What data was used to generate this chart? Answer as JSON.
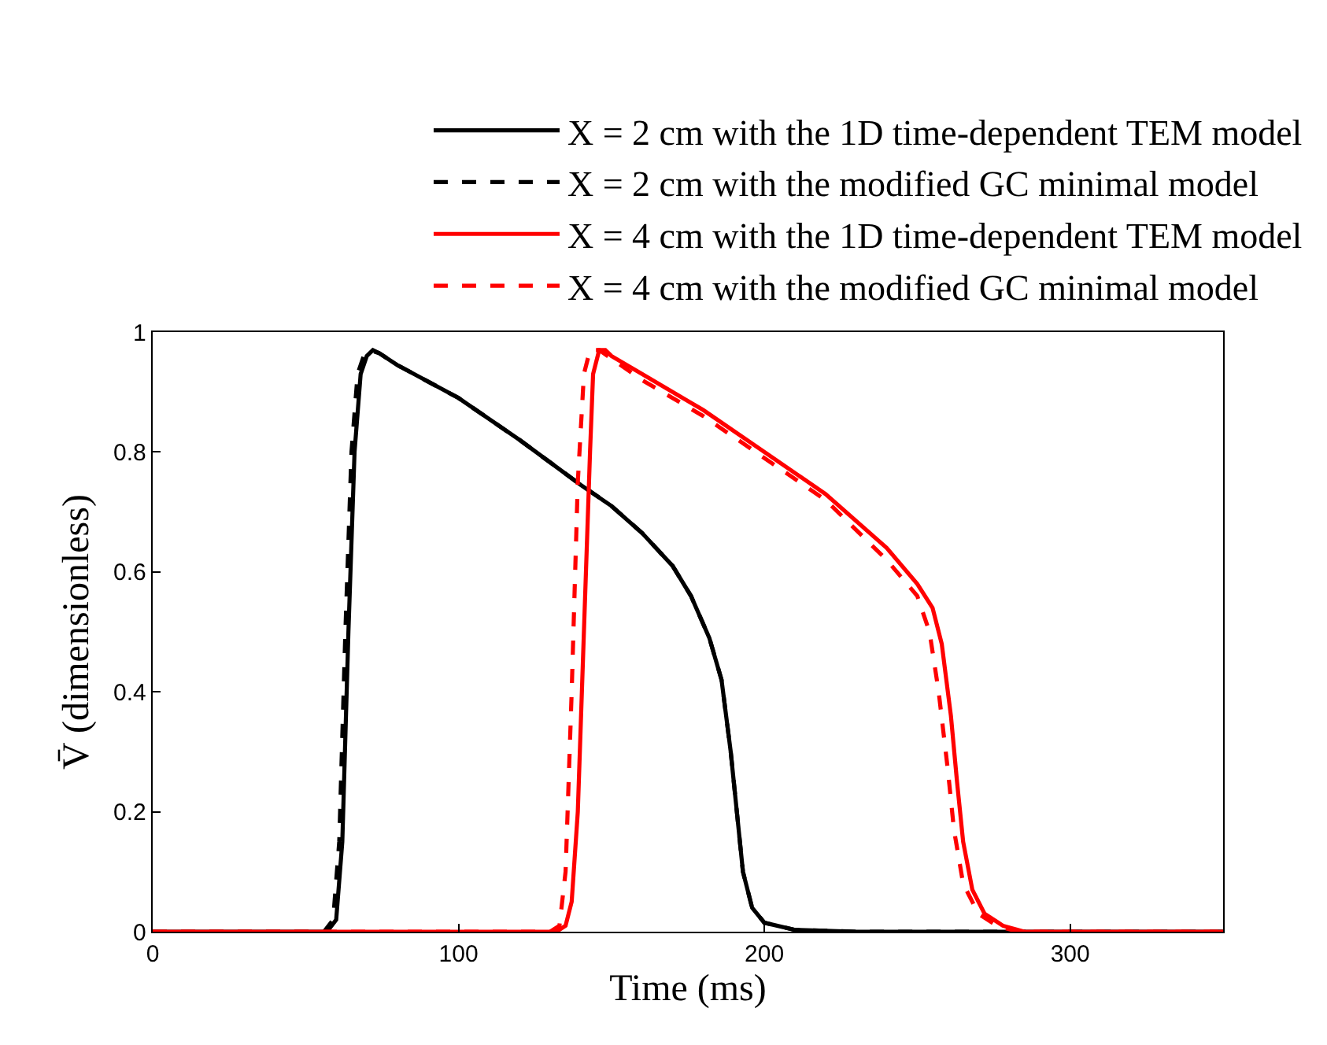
{
  "chart_data": {
    "type": "line",
    "xlabel": "Time (ms)",
    "ylabel": "V̄ (dimensionless)",
    "xlim": [
      0,
      350
    ],
    "xticks": [
      0,
      100,
      200,
      300
    ],
    "ylim": [
      0,
      1
    ],
    "yticks": [
      0,
      0.2,
      0.4,
      0.6,
      0.8,
      1
    ],
    "legend": "top",
    "marker": "none",
    "series": [
      {
        "name": "X = 2 cm with the 1D time-dependent TEM model",
        "color": "#000000",
        "line_style": "solid",
        "x": [
          0,
          57,
          60,
          62,
          64,
          66,
          68,
          70,
          72,
          74,
          80,
          100,
          120,
          140,
          150,
          160,
          170,
          176,
          182,
          186,
          189,
          191,
          193,
          196,
          200,
          210,
          230,
          350
        ],
        "values": [
          0,
          0,
          0.02,
          0.15,
          0.5,
          0.8,
          0.93,
          0.96,
          0.97,
          0.965,
          0.945,
          0.89,
          0.82,
          0.745,
          0.71,
          0.665,
          0.61,
          0.56,
          0.49,
          0.42,
          0.3,
          0.2,
          0.1,
          0.04,
          0.015,
          0.003,
          0,
          0
        ]
      },
      {
        "name": "X = 2 cm with the modified GC minimal model",
        "color": "#000000",
        "line_style": "dashed",
        "x": [
          0,
          56,
          59,
          61,
          63,
          65,
          67,
          69,
          71,
          74,
          80,
          100,
          120,
          140,
          150,
          160,
          170,
          176,
          182,
          186,
          189,
          191,
          193,
          196,
          200,
          210,
          230,
          350
        ],
        "values": [
          0,
          0,
          0.02,
          0.15,
          0.5,
          0.8,
          0.93,
          0.96,
          0.97,
          0.965,
          0.945,
          0.89,
          0.82,
          0.745,
          0.71,
          0.665,
          0.61,
          0.56,
          0.49,
          0.42,
          0.3,
          0.2,
          0.1,
          0.04,
          0.015,
          0.003,
          0,
          0
        ]
      },
      {
        "name": "X = 4 cm with the 1D time-dependent TEM model",
        "color": "#ff0000",
        "line_style": "solid",
        "x": [
          0,
          132,
          135,
          137,
          139,
          141,
          143,
          144,
          146,
          148,
          150,
          160,
          180,
          200,
          220,
          240,
          250,
          255,
          258,
          261,
          263,
          265,
          268,
          272,
          278,
          285,
          350
        ],
        "values": [
          0,
          0,
          0.01,
          0.05,
          0.2,
          0.5,
          0.8,
          0.93,
          0.97,
          0.97,
          0.96,
          0.93,
          0.87,
          0.8,
          0.73,
          0.64,
          0.58,
          0.54,
          0.48,
          0.36,
          0.25,
          0.15,
          0.07,
          0.03,
          0.01,
          0,
          0
        ]
      },
      {
        "name": "X = 4 cm with the modified GC minimal model",
        "color": "#ff0000",
        "line_style": "dashed",
        "x": [
          0,
          130,
          133,
          135,
          137,
          139,
          141,
          143,
          146,
          160,
          180,
          200,
          220,
          240,
          250,
          254,
          257,
          260,
          262,
          265,
          270,
          276,
          283,
          350
        ],
        "values": [
          0,
          0,
          0.01,
          0.1,
          0.4,
          0.75,
          0.93,
          0.97,
          0.97,
          0.92,
          0.86,
          0.79,
          0.72,
          0.62,
          0.56,
          0.5,
          0.4,
          0.27,
          0.17,
          0.08,
          0.03,
          0.01,
          0,
          0
        ]
      }
    ]
  }
}
